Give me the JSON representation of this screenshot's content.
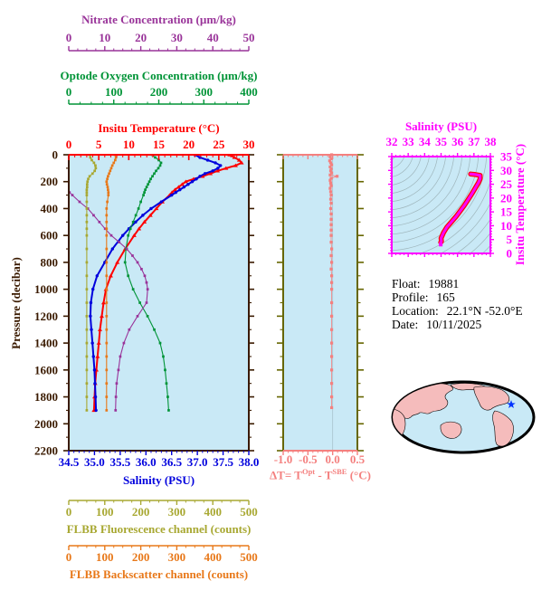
{
  "float_info": {
    "float_label": "Float:",
    "float_value": "19881",
    "profile_label": "Profile:",
    "profile_value": "165",
    "location_label": "Location:",
    "location_value": "22.1°N  -52.0°E",
    "date_label": "Date:",
    "date_value": "10/11/2025"
  },
  "delta_t_title": {
    "part1": "ΔT= T",
    "sup1": "Opt",
    "part2": " - T",
    "sup2": "SBE",
    "part3": " (°C)"
  },
  "colors": {
    "plot_background": "#C9E9F6",
    "frame_brown": "#3A1A00",
    "nitrate_purple": "#993399",
    "oxygen_green": "#009437",
    "temperature_red": "#FF0000",
    "salinity_blue": "#0000DD",
    "fluorescence_olive": "#A8A832",
    "backscatter_orange": "#E87819",
    "delta_t_salmon": "#F4807F",
    "delta_frame_olive": "#666600",
    "zero_gridline": "#A9C4CE",
    "ts_magenta": "#FF00FF",
    "ts_curve_edge_red": "#FF0000",
    "ts_contour_gray": "#9FB6BC",
    "map_land_pink": "#F5BCBC",
    "map_ocean_blue": "#C9E9F6",
    "map_outline_black": "#000000",
    "map_star_blue": "#0033FF"
  },
  "axes": {
    "nitrate": {
      "title": "Nitrate Concentration (µm/kg)",
      "range": [
        0,
        50
      ],
      "tick_values": [
        0,
        10,
        20,
        30,
        40,
        50
      ],
      "tick_labels": [
        "0",
        "10",
        "20",
        "30",
        "40",
        "50"
      ],
      "minor_step": 2.5
    },
    "oxygen": {
      "title": "Optode Oxygen Concentration (µm/kg)",
      "range": [
        0,
        400
      ],
      "tick_values": [
        0,
        100,
        200,
        300,
        400
      ],
      "tick_labels": [
        "0",
        "100",
        "200",
        "300",
        "400"
      ],
      "minor_step": 25
    },
    "temperature": {
      "title": "Insitu Temperature (°C)",
      "range": [
        0,
        30
      ],
      "tick_values": [
        0,
        5,
        10,
        15,
        20,
        25,
        30
      ],
      "tick_labels": [
        "0",
        "5",
        "10",
        "15",
        "20",
        "25",
        "30"
      ],
      "minor_step": 1
    },
    "salinity": {
      "title": "Salinity (PSU)",
      "range": [
        34.5,
        38.0
      ],
      "tick_values": [
        34.5,
        35.0,
        35.5,
        36.0,
        36.5,
        37.0,
        37.5,
        38.0
      ],
      "tick_labels": [
        "34.5",
        "35.0",
        "35.5",
        "36.0",
        "36.5",
        "37.0",
        "37.5",
        "38.0"
      ],
      "minor_step": 0.1
    },
    "fluorescence": {
      "title": "FLBB Fluorescence channel (counts)",
      "range": [
        0,
        500
      ],
      "tick_values": [
        0,
        100,
        200,
        300,
        400,
        500
      ],
      "tick_labels": [
        "0",
        "100",
        "200",
        "300",
        "400",
        "500"
      ],
      "minor_step": 25
    },
    "backscatter": {
      "title": "FLBB Backscatter channel (counts)",
      "range": [
        0,
        500
      ],
      "tick_values": [
        0,
        100,
        200,
        300,
        400,
        500
      ],
      "tick_labels": [
        "0",
        "100",
        "200",
        "300",
        "400",
        "500"
      ],
      "minor_step": 25
    },
    "pressure": {
      "title": "Pressure (decibar)",
      "range": [
        0,
        2200
      ],
      "tick_values": [
        0,
        200,
        400,
        600,
        800,
        1000,
        1200,
        1400,
        1600,
        1800,
        2000,
        2200
      ],
      "tick_labels": [
        "0",
        "200",
        "400",
        "600",
        "800",
        "1000",
        "1200",
        "1400",
        "1600",
        "1800",
        "2000",
        "2200"
      ],
      "minor_step": 100
    },
    "delta_t": {
      "range": [
        -1.0,
        0.5
      ],
      "tick_values": [
        -1.0,
        -0.5,
        0.0,
        0.5
      ],
      "tick_labels": [
        "-1.0",
        "-0.5",
        "0.0",
        "0.5"
      ],
      "minor_step": 0.1
    },
    "ts_salinity": {
      "title": "Salinity (PSU)",
      "range": [
        32,
        38
      ],
      "tick_values": [
        32,
        33,
        34,
        35,
        36,
        37,
        38
      ],
      "tick_labels": [
        "32",
        "33",
        "34",
        "35",
        "36",
        "37",
        "38"
      ],
      "minor_step": 0.25
    },
    "ts_temperature": {
      "title": "Insitu Temperature (°C)",
      "range": [
        0,
        35
      ],
      "tick_values": [
        0,
        5,
        10,
        15,
        20,
        25,
        30,
        35
      ],
      "tick_labels": [
        "0",
        "5",
        "10",
        "15",
        "20",
        "25",
        "30",
        "35"
      ],
      "minor_step": 1
    }
  },
  "chart_data": [
    {
      "id": "profile-plot",
      "type": "line",
      "y_axis": "pressure",
      "series": [
        {
          "name": "temperature",
          "axis": "temperature",
          "units": "°C",
          "color_key": "temperature_red",
          "marker": "triangle",
          "pressure": [
            0,
            20,
            40,
            60,
            80,
            100,
            120,
            140,
            160,
            180,
            200,
            220,
            240,
            260,
            280,
            300,
            350,
            400,
            450,
            500,
            550,
            600,
            700,
            800,
            900,
            1000,
            1100,
            1200,
            1300,
            1400,
            1500,
            1600,
            1700,
            1800,
            1900
          ],
          "values": [
            26.8,
            27.6,
            28.4,
            28.8,
            27.8,
            26.2,
            24.8,
            23.6,
            22.3,
            20.8,
            19.5,
            18.9,
            18.3,
            17.7,
            17.2,
            16.8,
            15.6,
            14.6,
            13.6,
            12.6,
            11.7,
            10.9,
            9.4,
            8.1,
            7.0,
            6.2,
            5.8,
            5.5,
            5.2,
            5.0,
            4.8,
            4.6,
            4.4,
            4.3,
            4.2
          ]
        },
        {
          "name": "salinity",
          "axis": "salinity",
          "units": "PSU",
          "color_key": "salinity_blue",
          "marker": "circle",
          "pressure": [
            0,
            20,
            40,
            60,
            80,
            100,
            120,
            140,
            160,
            180,
            200,
            220,
            240,
            260,
            280,
            300,
            350,
            400,
            450,
            500,
            550,
            600,
            700,
            800,
            900,
            1000,
            1100,
            1200,
            1300,
            1400,
            1500,
            1600,
            1700,
            1800,
            1900
          ],
          "values": [
            36.95,
            37.05,
            37.2,
            37.35,
            37.45,
            37.4,
            37.3,
            37.15,
            37.05,
            36.98,
            36.9,
            36.82,
            36.74,
            36.66,
            36.58,
            36.5,
            36.3,
            36.1,
            35.94,
            35.8,
            35.67,
            35.55,
            35.35,
            35.2,
            35.05,
            34.97,
            34.93,
            34.92,
            34.94,
            34.96,
            34.98,
            35.0,
            35.01,
            35.02,
            35.03
          ]
        },
        {
          "name": "oxygen",
          "axis": "oxygen",
          "units": "µm/kg",
          "color_key": "oxygen_green",
          "marker": "square",
          "pressure": [
            0,
            20,
            40,
            60,
            80,
            100,
            120,
            140,
            160,
            180,
            200,
            220,
            240,
            260,
            280,
            300,
            350,
            400,
            450,
            500,
            550,
            600,
            700,
            800,
            900,
            1000,
            1100,
            1200,
            1300,
            1400,
            1500,
            1600,
            1700,
            1800,
            1900
          ],
          "values": [
            185,
            192,
            200,
            205,
            203,
            199,
            194,
            190,
            186,
            182,
            179,
            176,
            173,
            170,
            168,
            166,
            160,
            155,
            149,
            143,
            137,
            132,
            127,
            125,
            132,
            143,
            158,
            175,
            190,
            203,
            210,
            214,
            217,
            220,
            222
          ]
        },
        {
          "name": "nitrate",
          "axis": "nitrate",
          "units": "µm/kg",
          "color_key": "nitrate_purple",
          "marker": "square",
          "pressure": [
            280,
            300,
            350,
            400,
            450,
            500,
            550,
            600,
            650,
            700,
            750,
            800,
            850,
            900,
            950,
            1000,
            1100,
            1200,
            1300,
            1400,
            1500,
            1600,
            1700,
            1800,
            1900
          ],
          "values": [
            0.2,
            1.0,
            3.0,
            5.3,
            6.9,
            8.5,
            10.1,
            11.8,
            14.0,
            16.1,
            17.7,
            19.1,
            20.2,
            21.1,
            21.6,
            21.9,
            21.6,
            19.1,
            16.8,
            15.3,
            14.3,
            13.8,
            13.3,
            13.1,
            13.0
          ]
        },
        {
          "name": "fluorescence",
          "axis": "fluorescence",
          "units": "counts",
          "color_key": "fluorescence_olive",
          "marker": "square",
          "pressure": [
            0,
            20,
            40,
            60,
            80,
            100,
            120,
            140,
            160,
            180,
            200,
            220,
            240,
            260,
            280,
            300,
            350,
            400,
            450,
            500,
            550,
            600,
            700,
            800,
            900,
            1000,
            1100,
            1200,
            1300,
            1400,
            1500,
            1600,
            1700,
            1800,
            1900
          ],
          "values": [
            58,
            60,
            64,
            70,
            74,
            75,
            72,
            66,
            58,
            54,
            52,
            51,
            51,
            50,
            50,
            50,
            50,
            50,
            50,
            50,
            50,
            50,
            50,
            50,
            50,
            50,
            50,
            50,
            50,
            50,
            50,
            50,
            50,
            50,
            50
          ]
        },
        {
          "name": "backscatter",
          "axis": "backscatter",
          "units": "counts",
          "color_key": "backscatter_orange",
          "marker": "square",
          "pressure": [
            0,
            20,
            40,
            60,
            80,
            100,
            120,
            140,
            160,
            180,
            200,
            220,
            240,
            260,
            280,
            300,
            350,
            400,
            450,
            500,
            550,
            600,
            700,
            800,
            900,
            1000,
            1100,
            1200,
            1300,
            1400,
            1500,
            1600,
            1700,
            1800,
            1900
          ],
          "values": [
            128,
            131,
            129,
            125,
            121,
            118,
            115,
            112,
            109,
            107,
            105,
            106,
            108,
            109,
            110,
            110,
            107,
            105,
            105,
            105,
            105,
            105,
            105,
            105,
            105,
            105,
            105,
            105,
            105,
            105,
            105,
            105,
            105,
            105,
            105
          ]
        }
      ]
    },
    {
      "id": "delta-t-plot",
      "type": "line",
      "x_axis": "delta_t",
      "y_axis": "pressure",
      "series": [
        {
          "name": "delta_t",
          "units": "°C",
          "color_key": "delta_t_salmon",
          "marker": "square",
          "pressure": [
            0,
            15,
            30,
            45,
            60,
            75,
            90,
            105,
            120,
            135,
            150,
            160,
            175,
            190,
            210,
            230,
            250,
            275,
            300,
            330,
            360,
            400,
            440,
            480,
            520,
            560,
            600,
            650,
            700,
            750,
            800,
            850,
            900,
            950,
            1000,
            1100,
            1200,
            1300,
            1400,
            1500,
            1600,
            1700,
            1800,
            1880
          ],
          "values": [
            -0.02,
            -0.05,
            -0.03,
            -0.06,
            -0.04,
            -0.02,
            -0.05,
            -0.03,
            -0.04,
            -0.02,
            -0.05,
            0.09,
            -0.03,
            -0.05,
            -0.04,
            -0.03,
            -0.05,
            -0.04,
            -0.03,
            -0.04,
            -0.03,
            -0.04,
            -0.03,
            -0.03,
            -0.03,
            -0.03,
            -0.03,
            -0.03,
            -0.02,
            -0.03,
            -0.02,
            -0.03,
            -0.02,
            -0.02,
            -0.02,
            -0.02,
            -0.02,
            -0.02,
            -0.02,
            -0.02,
            -0.02,
            -0.02,
            -0.02,
            -0.02
          ]
        }
      ]
    },
    {
      "id": "ts-plot",
      "type": "line",
      "x_axis": "ts_salinity",
      "y_axis": "ts_temperature",
      "series": [
        {
          "name": "ts-curve",
          "color_key": "ts_magenta",
          "edge_color_key": "ts_curve_edge_red",
          "salinity": [
            34.98,
            35.02,
            35.0,
            35.15,
            35.35,
            35.6,
            35.9,
            36.15,
            36.4,
            36.65,
            36.9,
            37.1,
            37.28,
            37.38,
            37.38,
            37.1,
            36.8
          ],
          "temperature": [
            4.0,
            4.3,
            5.5,
            7.5,
            9.5,
            11.2,
            13.2,
            15.2,
            17.2,
            19.5,
            21.8,
            23.8,
            25.6,
            27.0,
            28.2,
            28.5,
            28.7
          ]
        }
      ]
    }
  ]
}
